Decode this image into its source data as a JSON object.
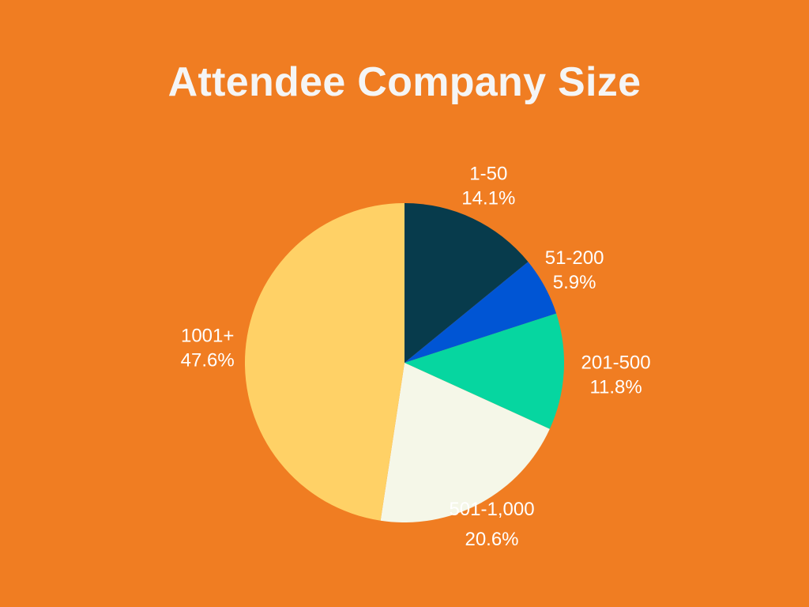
{
  "chart_data": {
    "type": "pie",
    "title": "Attendee Company Size",
    "slices": [
      {
        "label": "1-50",
        "value": 14.1,
        "value_text": "14.1%",
        "color": "#073B4C"
      },
      {
        "label": "51-200",
        "value": 5.9,
        "value_text": "5.9%",
        "color": "#0055D4"
      },
      {
        "label": "201-500",
        "value": 11.8,
        "value_text": "11.8%",
        "color": "#06D6A0"
      },
      {
        "label": "501-1,000",
        "value": 20.6,
        "value_text": "20.6%",
        "color": "#F5F7E8"
      },
      {
        "label": "1001+",
        "value": 47.6,
        "value_text": "47.6%",
        "color": "#FFD166"
      }
    ],
    "start_angle": "12 o'clock",
    "direction": "clockwise",
    "legend": "none"
  },
  "colors": {
    "background": "#F07D22",
    "title": "#F5F5F5",
    "label": "#FFFFFF"
  }
}
